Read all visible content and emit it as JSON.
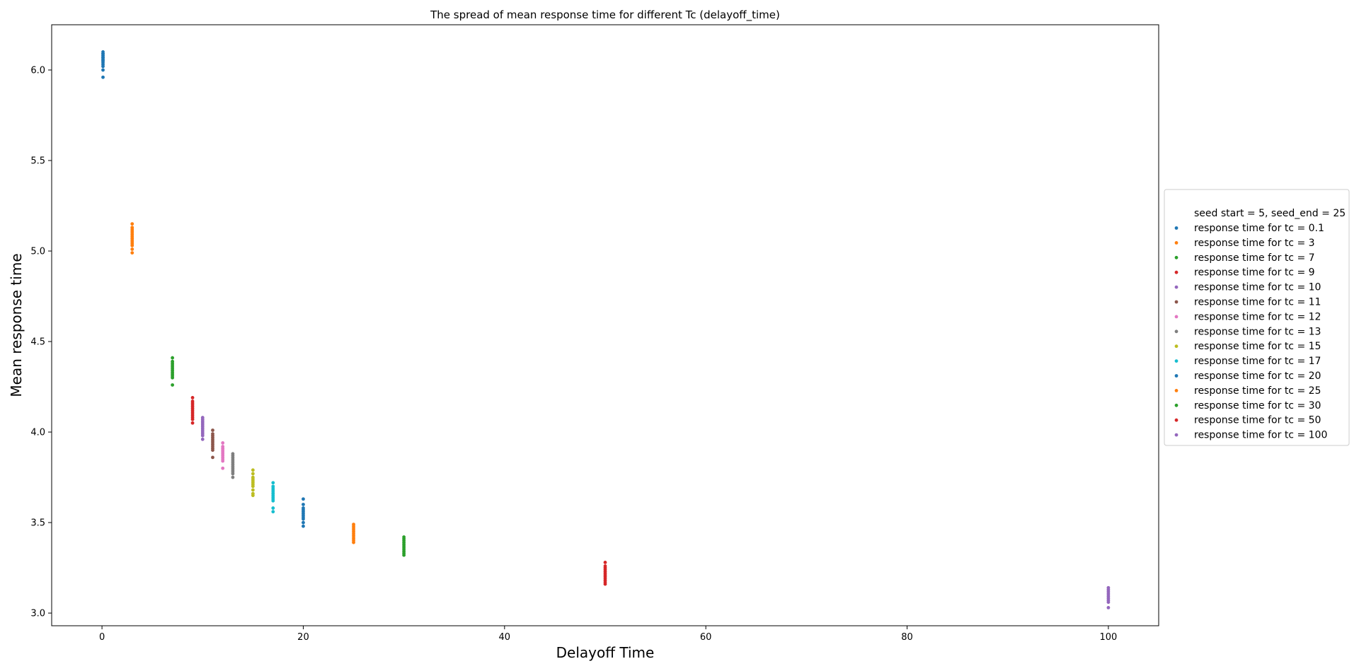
{
  "chart_data": {
    "type": "scatter",
    "title": "The spread of mean response time for different Tc (delayoff_time)",
    "xlabel": "Delayoff Time",
    "ylabel": "Mean response time",
    "xlim": [
      -5,
      105
    ],
    "ylim": [
      2.93,
      6.25
    ],
    "xticks": [
      0,
      20,
      40,
      60,
      80,
      100
    ],
    "xtick_labels": [
      "0",
      "20",
      "40",
      "60",
      "80",
      "100"
    ],
    "yticks": [
      3.0,
      3.5,
      4.0,
      4.5,
      5.0,
      5.5,
      6.0
    ],
    "ytick_labels": [
      "3.0",
      "3.5",
      "4.0",
      "4.5",
      "5.0",
      "5.5",
      "6.0"
    ],
    "grid": false,
    "legend_position": "center-right outside",
    "legend_header": "seed start = 5, seed_end = 25",
    "series": [
      {
        "name": "response time for tc = 0.1",
        "color": "#1f77b4",
        "x": 0.1,
        "y": [
          5.96,
          6.0,
          6.02,
          6.03,
          6.04,
          6.05,
          6.05,
          6.06,
          6.06,
          6.07,
          6.07,
          6.08,
          6.08,
          6.09,
          6.09,
          6.1
        ]
      },
      {
        "name": "response time for tc = 3",
        "color": "#ff7f0e",
        "x": 3,
        "y": [
          4.99,
          5.01,
          5.03,
          5.04,
          5.05,
          5.06,
          5.07,
          5.08,
          5.09,
          5.1,
          5.11,
          5.12,
          5.13,
          5.15
        ]
      },
      {
        "name": "response time for tc = 7",
        "color": "#2ca02c",
        "x": 7,
        "y": [
          4.26,
          4.3,
          4.31,
          4.32,
          4.33,
          4.34,
          4.35,
          4.36,
          4.37,
          4.38,
          4.39,
          4.41
        ]
      },
      {
        "name": "response time for tc = 9",
        "color": "#d62728",
        "x": 9,
        "y": [
          4.05,
          4.07,
          4.08,
          4.09,
          4.1,
          4.11,
          4.12,
          4.13,
          4.14,
          4.15,
          4.16,
          4.17,
          4.19
        ]
      },
      {
        "name": "response time for tc = 10",
        "color": "#9467bd",
        "x": 10,
        "y": [
          3.96,
          3.98,
          3.99,
          4.0,
          4.01,
          4.02,
          4.03,
          4.04,
          4.05,
          4.06,
          4.07,
          4.08
        ]
      },
      {
        "name": "response time for tc = 11",
        "color": "#8c564b",
        "x": 11,
        "y": [
          3.86,
          3.9,
          3.91,
          3.92,
          3.93,
          3.94,
          3.95,
          3.96,
          3.97,
          3.98,
          3.99,
          4.01
        ]
      },
      {
        "name": "response time for tc = 12",
        "color": "#e377c2",
        "x": 12,
        "y": [
          3.8,
          3.84,
          3.85,
          3.86,
          3.87,
          3.88,
          3.89,
          3.9,
          3.91,
          3.92,
          3.94
        ]
      },
      {
        "name": "response time for tc = 13",
        "color": "#7f7f7f",
        "x": 13,
        "y": [
          3.75,
          3.77,
          3.78,
          3.79,
          3.8,
          3.81,
          3.82,
          3.83,
          3.84,
          3.85,
          3.86,
          3.87,
          3.88
        ]
      },
      {
        "name": "response time for tc = 15",
        "color": "#bcbd22",
        "x": 15,
        "y": [
          3.65,
          3.66,
          3.68,
          3.7,
          3.71,
          3.72,
          3.73,
          3.74,
          3.75,
          3.77,
          3.79
        ]
      },
      {
        "name": "response time for tc = 17",
        "color": "#17becf",
        "x": 17,
        "y": [
          3.56,
          3.58,
          3.62,
          3.63,
          3.64,
          3.65,
          3.66,
          3.67,
          3.68,
          3.69,
          3.7,
          3.72
        ]
      },
      {
        "name": "response time for tc = 20",
        "color": "#1f77b4",
        "x": 20,
        "y": [
          3.48,
          3.5,
          3.52,
          3.53,
          3.54,
          3.55,
          3.56,
          3.57,
          3.58,
          3.6,
          3.63
        ]
      },
      {
        "name": "response time for tc = 25",
        "color": "#ff7f0e",
        "x": 25,
        "y": [
          3.39,
          3.4,
          3.41,
          3.42,
          3.43,
          3.44,
          3.45,
          3.46,
          3.47,
          3.48,
          3.49
        ]
      },
      {
        "name": "response time for tc = 30",
        "color": "#2ca02c",
        "x": 30,
        "y": [
          3.32,
          3.33,
          3.34,
          3.35,
          3.36,
          3.37,
          3.38,
          3.39,
          3.4,
          3.41,
          3.42
        ]
      },
      {
        "name": "response time for tc = 50",
        "color": "#d62728",
        "x": 50,
        "y": [
          3.16,
          3.17,
          3.18,
          3.19,
          3.2,
          3.21,
          3.22,
          3.23,
          3.24,
          3.25,
          3.26,
          3.28
        ]
      },
      {
        "name": "response time for tc = 100",
        "color": "#9467bd",
        "x": 100,
        "y": [
          3.03,
          3.06,
          3.07,
          3.08,
          3.09,
          3.1,
          3.11,
          3.12,
          3.13,
          3.14
        ]
      }
    ]
  }
}
